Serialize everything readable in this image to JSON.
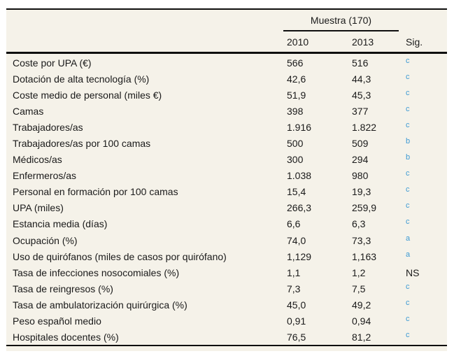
{
  "colors": {
    "panel_background": "#f5f2e9",
    "rule": "#0f0f0f",
    "text": "#1a1a1a",
    "significance_blue": "#3d9ad3"
  },
  "table": {
    "group_header": "Muestra (170)",
    "columns": {
      "year1": "2010",
      "year2": "2013",
      "sig": "Sig."
    },
    "rows": [
      {
        "label": "Coste por UPA (€)",
        "v2010": "566",
        "v2013": "516",
        "sig": "c"
      },
      {
        "label": "Dotación de alta tecnología (%)",
        "v2010": "42,6",
        "v2013": "44,3",
        "sig": "c"
      },
      {
        "label": "Coste medio de personal (miles €)",
        "v2010": "51,9",
        "v2013": "45,3",
        "sig": "c"
      },
      {
        "label": "Camas",
        "v2010": "398",
        "v2013": "377",
        "sig": "c"
      },
      {
        "label": "Trabajadores/as",
        "v2010": "1.916",
        "v2013": "1.822",
        "sig": "c"
      },
      {
        "label": "Trabajadores/as por 100 camas",
        "v2010": "500",
        "v2013": "509",
        "sig": "b"
      },
      {
        "label": "Médicos/as",
        "v2010": "300",
        "v2013": "294",
        "sig": "b"
      },
      {
        "label": "Enfermeros/as",
        "v2010": "1.038",
        "v2013": "980",
        "sig": "c"
      },
      {
        "label": "Personal en formación por 100 camas",
        "v2010": "15,4",
        "v2013": "19,3",
        "sig": "c"
      },
      {
        "label": "UPA (miles)",
        "v2010": "266,3",
        "v2013": "259,9",
        "sig": "c"
      },
      {
        "label": "Estancia media (días)",
        "v2010": "6,6",
        "v2013": "6,3",
        "sig": "c"
      },
      {
        "label": "Ocupación (%)",
        "v2010": "74,0",
        "v2013": "73,3",
        "sig": "a"
      },
      {
        "label": "Uso de quirófanos (miles de casos por quirófano)",
        "v2010": "1,129",
        "v2013": "1,163",
        "sig": "a"
      },
      {
        "label": "Tasa de infecciones nosocomiales (%)",
        "v2010": "1,1",
        "v2013": "1,2",
        "sig": "NS"
      },
      {
        "label": "Tasa de reingresos (%)",
        "v2010": "7,3",
        "v2013": "7,5",
        "sig": "c"
      },
      {
        "label": "Tasa de ambulatorización quirúrgica (%)",
        "v2010": "45,0",
        "v2013": "49,2",
        "sig": "c"
      },
      {
        "label": "Peso español medio",
        "v2010": "0,91",
        "v2013": "0,94",
        "sig": "c"
      },
      {
        "label": "Hospitales docentes (%)",
        "v2010": "76,5",
        "v2013": "81,2",
        "sig": "c"
      }
    ]
  }
}
